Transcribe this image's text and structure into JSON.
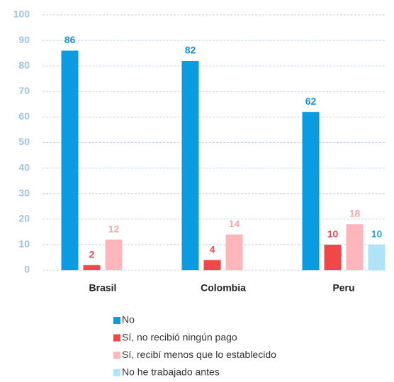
{
  "chart_data": {
    "type": "bar",
    "categories": [
      "Brasil",
      "Colombia",
      "Peru"
    ],
    "series": [
      {
        "name": "No",
        "color": "#0b9be3",
        "label_color": "#1a8fd8",
        "values": [
          86,
          82,
          62
        ]
      },
      {
        "name": "Sí, no recibió ningún pago",
        "color": "#f04848",
        "label_color": "#f04848",
        "values": [
          2,
          4,
          10
        ]
      },
      {
        "name": "Sí, recibí menos que lo establecido",
        "color": "#ffb6bb",
        "label_color": "#f7a7ac",
        "values": [
          12,
          14,
          18
        ]
      },
      {
        "name": "No he trabajado antes",
        "color": "#aee3f8",
        "label_color": "#2aa6e2",
        "values": [
          null,
          null,
          10
        ]
      }
    ],
    "ylim": [
      0,
      100
    ],
    "yticks": [
      0,
      10,
      20,
      30,
      40,
      50,
      60,
      70,
      80,
      90,
      100
    ],
    "grid": true
  }
}
